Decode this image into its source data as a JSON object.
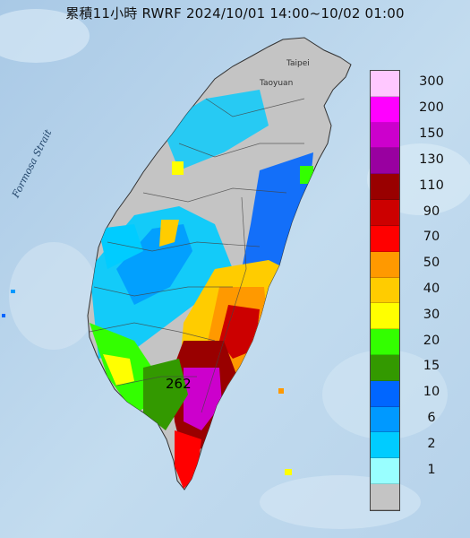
{
  "title": "累積11小時 RWRF 2024/10/01 14:00~10/02 01:00",
  "labels": {
    "strait": "Formosa Strait",
    "taipei": "Taipei",
    "taoyuan": "Taoyuan",
    "max_value": "262"
  },
  "legend": {
    "levels": [
      {
        "label": "300",
        "color": "#ffc8ff"
      },
      {
        "label": "200",
        "color": "#ff00ff"
      },
      {
        "label": "150",
        "color": "#cc00cc"
      },
      {
        "label": "130",
        "color": "#9900a0"
      },
      {
        "label": "110",
        "color": "#990000"
      },
      {
        "label": "90",
        "color": "#cc0000"
      },
      {
        "label": "70",
        "color": "#ff0000"
      },
      {
        "label": "50",
        "color": "#ff9900"
      },
      {
        "label": "40",
        "color": "#ffcc00"
      },
      {
        "label": "30",
        "color": "#ffff00"
      },
      {
        "label": "20",
        "color": "#33ff00"
      },
      {
        "label": "15",
        "color": "#339900"
      },
      {
        "label": "10",
        "color": "#0066ff"
      },
      {
        "label": "6",
        "color": "#0099ff"
      },
      {
        "label": "2",
        "color": "#00ccff"
      },
      {
        "label": "1",
        "color": "#99ffff"
      },
      {
        "label": "",
        "color": "#c4c4c4"
      }
    ]
  }
}
